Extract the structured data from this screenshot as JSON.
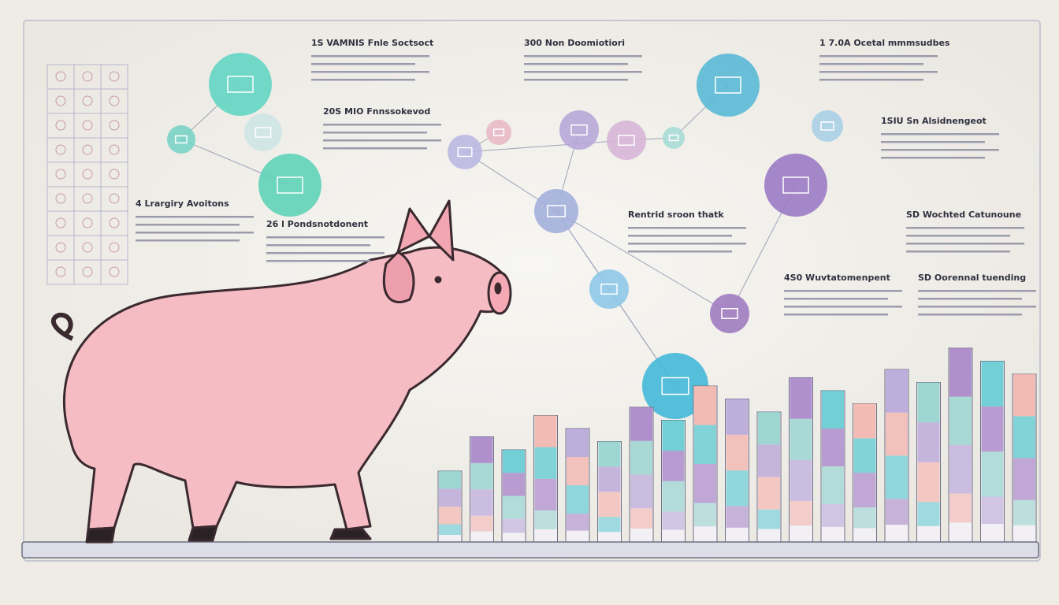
{
  "headings": [
    {
      "text": "1S VAMNIS Fnle Soctsoct"
    },
    {
      "text": "300 Non Doomiotiori"
    },
    {
      "text": "1 7.0A Ocetal mmmsudbes"
    },
    {
      "text": "20S MIO Fnnssokevod"
    },
    {
      "text": "1SIU Sn Alsidnengeot"
    },
    {
      "text": "4 Lrargiry Avoitons"
    },
    {
      "text": "26 l Pondsnotdonent"
    },
    {
      "text": "Rentrid sroon thatk"
    },
    {
      "text": "SD Wochted Catunoune"
    },
    {
      "text": "4S0 Wuvtatomenpent"
    },
    {
      "text": "SD Oorennal tuending"
    }
  ]
}
